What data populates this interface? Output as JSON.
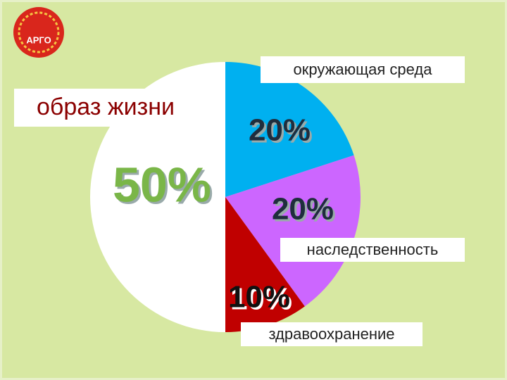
{
  "logo": {
    "text": "АРГО"
  },
  "chart_data": {
    "type": "pie",
    "categories": [
      "окружающая среда",
      "наследственность",
      "здравоохранение",
      "образ жизни"
    ],
    "values": [
      20,
      20,
      10,
      50
    ],
    "value_labels": [
      "20%",
      "20%",
      "10%",
      "50%"
    ],
    "colors": [
      "#00b0f0",
      "#cc66ff",
      "#c00000",
      "#ffffff"
    ]
  }
}
